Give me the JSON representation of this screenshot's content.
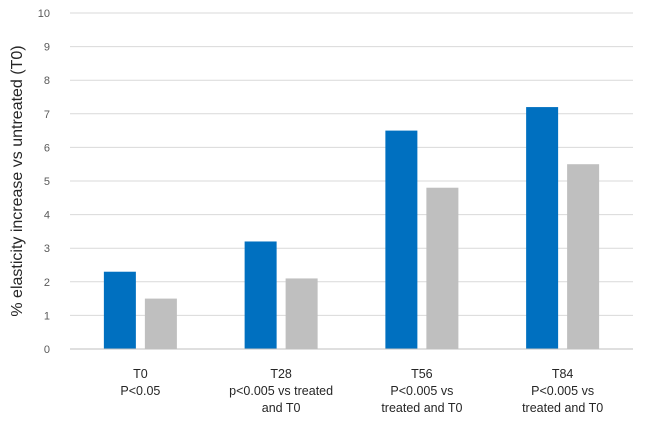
{
  "chart_data": {
    "type": "bar",
    "ylabel": "% elasticity increase vs untreated (T0)",
    "ylim": [
      0,
      10
    ],
    "yticks": [
      0,
      1,
      2,
      3,
      4,
      5,
      6,
      7,
      8,
      9,
      10
    ],
    "grid": true,
    "categories": [
      [
        "T0",
        "P<0.05"
      ],
      [
        "T28",
        "p<0.005 vs treated",
        "and T0"
      ],
      [
        "T56",
        "P<0.005 vs",
        "treated and T0"
      ],
      [
        "T84",
        "P<0.005 vs",
        "treated and T0"
      ]
    ],
    "series": [
      {
        "color": "#0070c0",
        "values": [
          2.3,
          3.2,
          6.5,
          7.2
        ]
      },
      {
        "color": "#bfbfbf",
        "values": [
          1.5,
          2.1,
          4.8,
          5.5
        ]
      }
    ]
  }
}
